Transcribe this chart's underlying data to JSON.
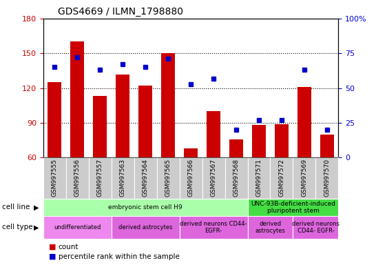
{
  "title": "GDS4669 / ILMN_1798880",
  "samples": [
    "GSM997555",
    "GSM997556",
    "GSM997557",
    "GSM997563",
    "GSM997564",
    "GSM997565",
    "GSM997566",
    "GSM997567",
    "GSM997568",
    "GSM997571",
    "GSM997572",
    "GSM997569",
    "GSM997570"
  ],
  "counts": [
    125,
    160,
    113,
    132,
    122,
    150,
    68,
    100,
    76,
    88,
    89,
    121,
    80
  ],
  "percentiles": [
    65,
    72,
    63,
    67,
    65,
    71,
    53,
    57,
    20,
    27,
    27,
    63,
    20
  ],
  "ylim_left": [
    60,
    180
  ],
  "ylim_right": [
    0,
    100
  ],
  "yticks_left": [
    60,
    90,
    120,
    150,
    180
  ],
  "yticks_right": [
    0,
    25,
    50,
    75,
    100
  ],
  "bar_color": "#cc0000",
  "dot_color": "#0000cc",
  "cell_line_data": [
    {
      "label": "embryonic stem cell H9",
      "start": 0,
      "end": 9,
      "color": "#aaffaa"
    },
    {
      "label": "UNC-93B-deficient-induced\npluripotent stem",
      "start": 9,
      "end": 13,
      "color": "#44dd44"
    }
  ],
  "cell_type_data": [
    {
      "label": "undifferentiated",
      "start": 0,
      "end": 3,
      "color": "#ee88ee"
    },
    {
      "label": "derived astrocytes",
      "start": 3,
      "end": 6,
      "color": "#dd66dd"
    },
    {
      "label": "derived neurons CD44-\nEGFR-",
      "start": 6,
      "end": 9,
      "color": "#dd66dd"
    },
    {
      "label": "derived\nastrocytes",
      "start": 9,
      "end": 11,
      "color": "#dd66dd"
    },
    {
      "label": "derived neurons\nCD44- EGFR-",
      "start": 11,
      "end": 13,
      "color": "#dd66dd"
    }
  ],
  "left_tick_color": "#cc0000",
  "right_tick_color": "#0000cc",
  "tick_label_bg": "#cccccc",
  "grid_lines": [
    90,
    120,
    150
  ]
}
